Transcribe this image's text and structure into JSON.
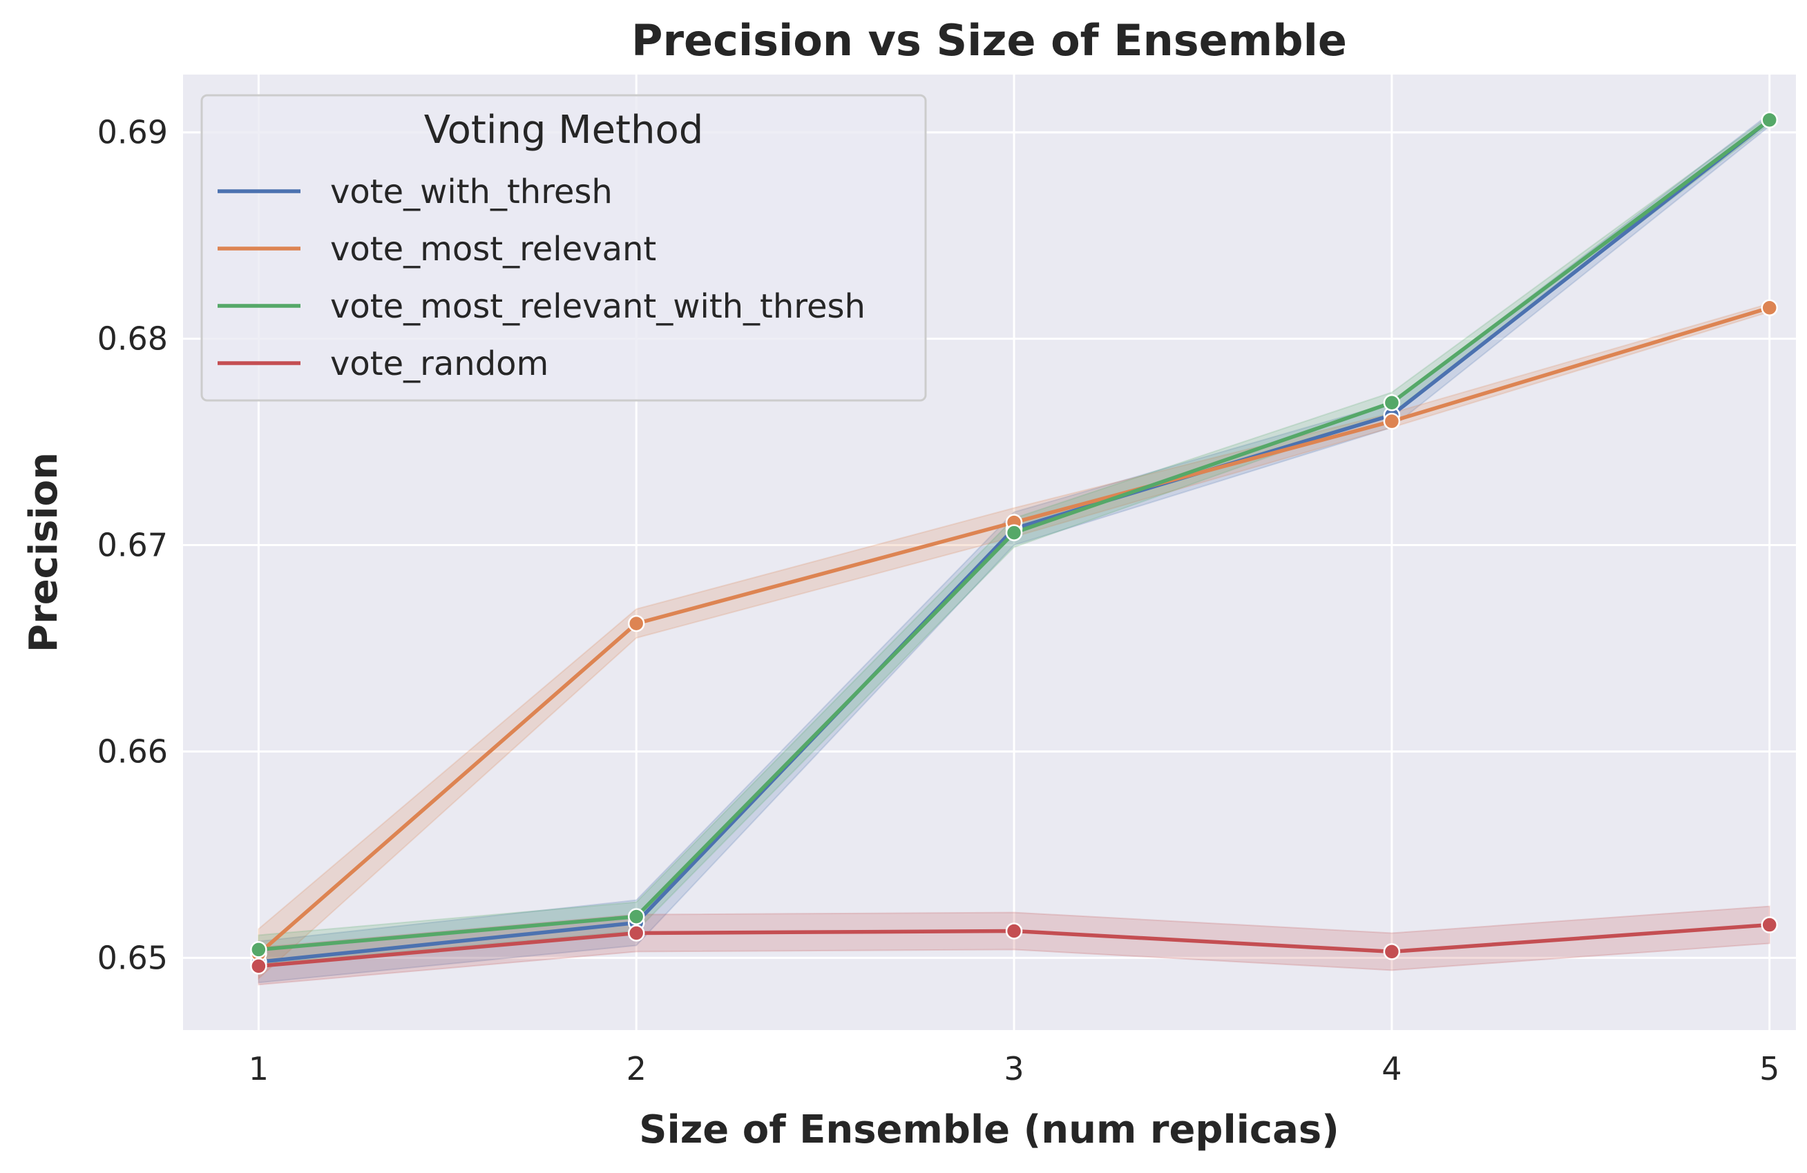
{
  "chart_data": {
    "type": "line",
    "title": "Precision vs Size of Ensemble",
    "xlabel": "Size of Ensemble (num replicas)",
    "ylabel": "Precision",
    "x": [
      1,
      2,
      3,
      4,
      5
    ],
    "x_tick_labels": [
      "1",
      "2",
      "3",
      "4",
      "5"
    ],
    "xlim": [
      0.8,
      5.07
    ],
    "ylim": [
      0.6465,
      0.6928
    ],
    "y_ticks": [
      0.65,
      0.66,
      0.67,
      0.68,
      0.69
    ],
    "y_tick_labels": [
      "0.65",
      "0.66",
      "0.67",
      "0.68",
      "0.69"
    ],
    "grid": true,
    "background": "#eaeaf2",
    "legend": {
      "title": "Voting Method",
      "placement": "top-left"
    },
    "series": [
      {
        "name": "vote_with_thresh",
        "color": "#4c72b0",
        "values": [
          0.6498,
          0.6517,
          0.6708,
          0.6763,
          0.6906
        ],
        "ci_low": [
          0.6488,
          0.6506,
          0.67,
          0.6757,
          0.6903
        ],
        "ci_high": [
          0.6508,
          0.6528,
          0.6716,
          0.6769,
          0.6909
        ]
      },
      {
        "name": "vote_most_relevant",
        "color": "#dd8452",
        "values": [
          0.6502,
          0.6662,
          0.6711,
          0.676,
          0.6815
        ],
        "ci_low": [
          0.649,
          0.6655,
          0.6704,
          0.6757,
          0.6813
        ],
        "ci_high": [
          0.6514,
          0.6669,
          0.6718,
          0.6764,
          0.6817
        ]
      },
      {
        "name": "vote_most_relevant_with_thresh",
        "color": "#55a868",
        "values": [
          0.6504,
          0.652,
          0.6706,
          0.6769,
          0.6906
        ],
        "ci_low": [
          0.6497,
          0.6513,
          0.6699,
          0.6764,
          0.6904
        ],
        "ci_high": [
          0.6511,
          0.6527,
          0.6713,
          0.6774,
          0.6908
        ]
      },
      {
        "name": "vote_random",
        "color": "#c44e52",
        "values": [
          0.6496,
          0.6512,
          0.6513,
          0.6503,
          0.6516
        ],
        "ci_low": [
          0.6487,
          0.6503,
          0.6504,
          0.6494,
          0.6507
        ],
        "ci_high": [
          0.6505,
          0.6521,
          0.6522,
          0.6512,
          0.6525
        ]
      }
    ]
  }
}
